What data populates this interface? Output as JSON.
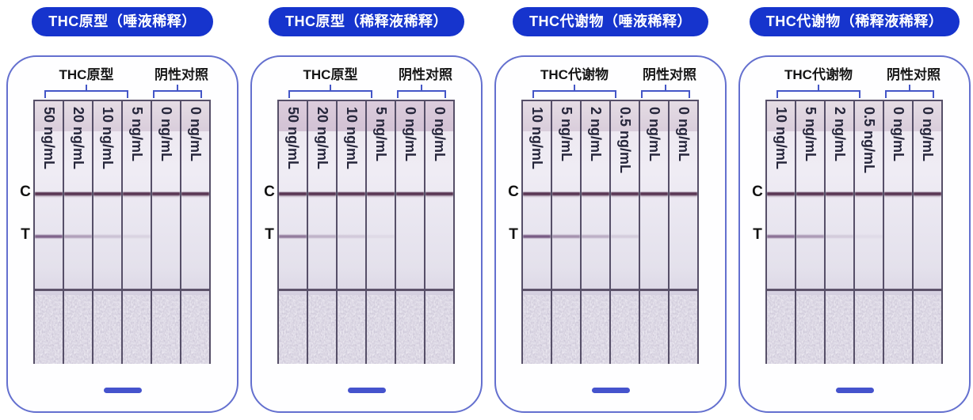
{
  "colors": {
    "pill_bg": "#1634cd",
    "pill_text": "#ffffff",
    "card_border": "#6470cf",
    "bracket": "#4456c7",
    "dash": "#4553cd",
    "control_line": "#4f2a49",
    "test_line": "#63406f"
  },
  "panels": [
    {
      "title": "THC原型（唾液稀释）",
      "analyte_label": "THC原型",
      "control_label": "阴性对照",
      "line_labels": {
        "control": "C",
        "test": "T"
      },
      "strips": [
        {
          "conc": "50 ng/mL",
          "t_intensity": 0.8
        },
        {
          "conc": "20 ng/mL",
          "t_intensity": 0.42
        },
        {
          "conc": "10 ng/mL",
          "t_intensity": 0.2
        },
        {
          "conc": "5 ng/mL",
          "t_intensity": 0.1
        },
        {
          "conc": "0 ng/mL",
          "t_intensity": 0
        },
        {
          "conc": "0 ng/mL",
          "t_intensity": 0
        }
      ]
    },
    {
      "title": "THC原型（稀释液稀释）",
      "analyte_label": "THC原型",
      "control_label": "阴性对照",
      "line_labels": {
        "control": "C",
        "test": "T"
      },
      "strips": [
        {
          "conc": "50 ng/mL",
          "t_intensity": 0.65
        },
        {
          "conc": "20 ng/mL",
          "t_intensity": 0.3
        },
        {
          "conc": "10 ng/mL",
          "t_intensity": 0.16
        },
        {
          "conc": "5 ng/mL",
          "t_intensity": 0.06
        },
        {
          "conc": "0 ng/mL",
          "t_intensity": 0
        },
        {
          "conc": "0 ng/mL",
          "t_intensity": 0
        }
      ]
    },
    {
      "title": "THC代谢物（唾液稀释）",
      "analyte_label": "THC代谢物",
      "control_label": "阴性对照",
      "line_labels": {
        "control": "C",
        "test": "T"
      },
      "strips": [
        {
          "conc": "10 ng/mL",
          "t_intensity": 0.85
        },
        {
          "conc": "5 ng/mL",
          "t_intensity": 0.5
        },
        {
          "conc": "2 ng/mL",
          "t_intensity": 0.32
        },
        {
          "conc": "0.5 ng/mL",
          "t_intensity": 0.14
        },
        {
          "conc": "0 ng/mL",
          "t_intensity": 0
        },
        {
          "conc": "0 ng/mL",
          "t_intensity": 0
        }
      ]
    },
    {
      "title": "THC代谢物（稀释液稀释）",
      "analyte_label": "THC代谢物",
      "control_label": "阴性对照",
      "line_labels": {
        "control": "C",
        "test": "T"
      },
      "strips": [
        {
          "conc": "10 ng/mL",
          "t_intensity": 0.7
        },
        {
          "conc": "5 ng/mL",
          "t_intensity": 0.45
        },
        {
          "conc": "2 ng/mL",
          "t_intensity": 0.15
        },
        {
          "conc": "0.5 ng/mL",
          "t_intensity": 0.05
        },
        {
          "conc": "0 ng/mL",
          "t_intensity": 0
        },
        {
          "conc": "0 ng/mL",
          "t_intensity": 0
        }
      ]
    }
  ]
}
